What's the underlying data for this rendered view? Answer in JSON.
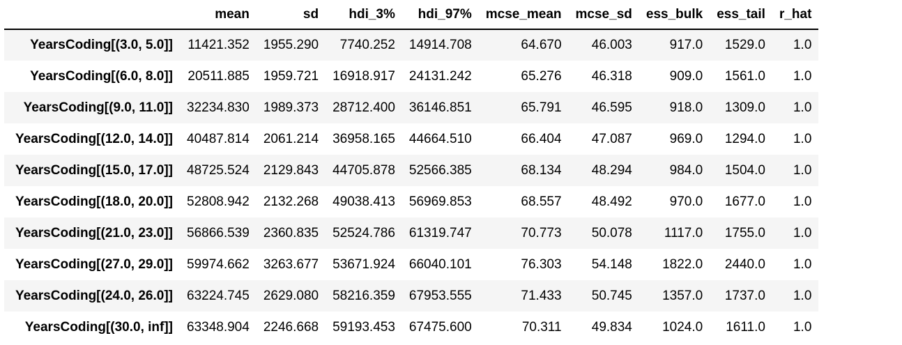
{
  "columns": [
    "mean",
    "sd",
    "hdi_3%",
    "hdi_97%",
    "mcse_mean",
    "mcse_sd",
    "ess_bulk",
    "ess_tail",
    "r_hat"
  ],
  "rows": [
    {
      "index": "YearsCoding[(3.0, 5.0]]",
      "values": [
        "11421.352",
        "1955.290",
        "7740.252",
        "14914.708",
        "64.670",
        "46.003",
        "917.0",
        "1529.0",
        "1.0"
      ]
    },
    {
      "index": "YearsCoding[(6.0, 8.0]]",
      "values": [
        "20511.885",
        "1959.721",
        "16918.917",
        "24131.242",
        "65.276",
        "46.318",
        "909.0",
        "1561.0",
        "1.0"
      ]
    },
    {
      "index": "YearsCoding[(9.0, 11.0]]",
      "values": [
        "32234.830",
        "1989.373",
        "28712.400",
        "36146.851",
        "65.791",
        "46.595",
        "918.0",
        "1309.0",
        "1.0"
      ]
    },
    {
      "index": "YearsCoding[(12.0, 14.0]]",
      "values": [
        "40487.814",
        "2061.214",
        "36958.165",
        "44664.510",
        "66.404",
        "47.087",
        "969.0",
        "1294.0",
        "1.0"
      ]
    },
    {
      "index": "YearsCoding[(15.0, 17.0]]",
      "values": [
        "48725.524",
        "2129.843",
        "44705.878",
        "52566.385",
        "68.134",
        "48.294",
        "984.0",
        "1504.0",
        "1.0"
      ]
    },
    {
      "index": "YearsCoding[(18.0, 20.0]]",
      "values": [
        "52808.942",
        "2132.268",
        "49038.413",
        "56969.853",
        "68.557",
        "48.492",
        "970.0",
        "1677.0",
        "1.0"
      ]
    },
    {
      "index": "YearsCoding[(21.0, 23.0]]",
      "values": [
        "56866.539",
        "2360.835",
        "52524.786",
        "61319.747",
        "70.773",
        "50.078",
        "1117.0",
        "1755.0",
        "1.0"
      ]
    },
    {
      "index": "YearsCoding[(27.0, 29.0]]",
      "values": [
        "59974.662",
        "3263.677",
        "53671.924",
        "66040.101",
        "76.303",
        "54.148",
        "1822.0",
        "2440.0",
        "1.0"
      ]
    },
    {
      "index": "YearsCoding[(24.0, 26.0]]",
      "values": [
        "63224.745",
        "2629.080",
        "58216.359",
        "67953.555",
        "71.433",
        "50.745",
        "1357.0",
        "1737.0",
        "1.0"
      ]
    },
    {
      "index": "YearsCoding[(30.0, inf]]",
      "values": [
        "63348.904",
        "2246.668",
        "59193.453",
        "67475.600",
        "70.311",
        "49.834",
        "1024.0",
        "1611.0",
        "1.0"
      ]
    }
  ]
}
